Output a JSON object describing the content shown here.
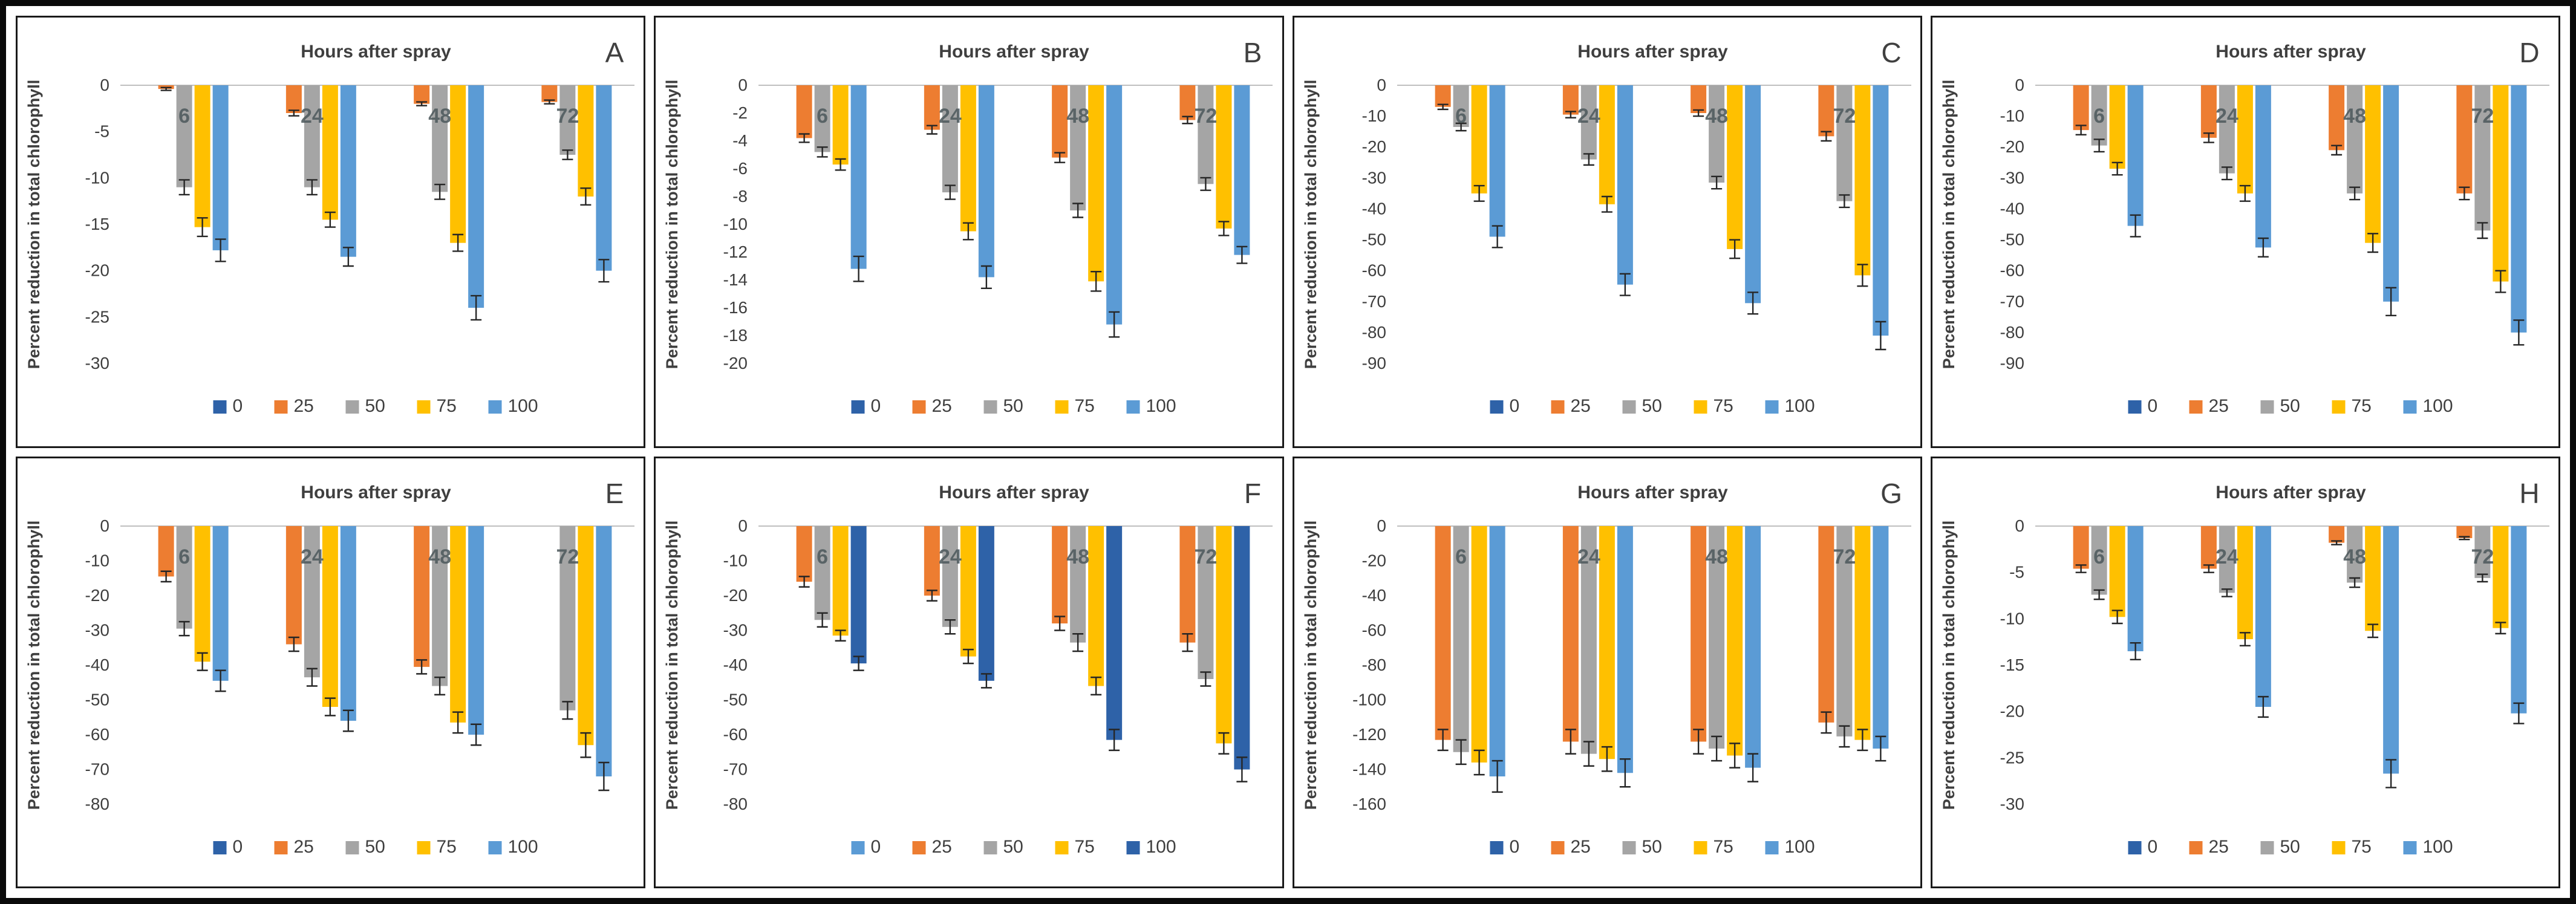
{
  "figure": {
    "title_label": "Hours after spray",
    "y_axis_label": "Percent reduction in total chlorophyll",
    "categories": [
      "6",
      "24",
      "48",
      "72"
    ],
    "legend_labels": [
      "0",
      "25",
      "50",
      "75",
      "100"
    ],
    "colors": {
      "dark_blue": "#2E62A8",
      "orange": "#ED7D31",
      "gray": "#A5A5A5",
      "gold": "#FFC000",
      "light_blue": "#5B9BD5",
      "axis_text": "#3F3F3F",
      "title_text": "#3F3F3F",
      "panel_letter": "#404040",
      "category_label": "#4F5B5E",
      "error_bar": "#262626",
      "zero_line": "#BFBFBF"
    }
  },
  "chart_data": [
    {
      "panel": "A",
      "type": "bar",
      "title": "Hours after spray",
      "xlabel": "",
      "ylabel": "Percent reduction in total chlorophyll",
      "categories": [
        "6",
        "24",
        "48",
        "72"
      ],
      "ylim": [
        0,
        -30
      ],
      "ytick_step": 5,
      "legend_position": "bottom",
      "series_colors": [
        "dark_blue",
        "orange",
        "gray",
        "gold",
        "light_blue"
      ],
      "series": [
        {
          "name": "0",
          "values": [
            0,
            0,
            0,
            0
          ],
          "errors": [
            0,
            0,
            0,
            0
          ]
        },
        {
          "name": "25",
          "values": [
            -0.4,
            -3,
            -2,
            -1.8
          ],
          "errors": [
            0.15,
            0.3,
            0.2,
            0.2
          ]
        },
        {
          "name": "50",
          "values": [
            -11,
            -11,
            -11.5,
            -7.5
          ],
          "errors": [
            0.8,
            0.8,
            0.8,
            0.5
          ]
        },
        {
          "name": "75",
          "values": [
            -15.3,
            -14.5,
            -17,
            -12
          ],
          "errors": [
            1.0,
            0.8,
            0.9,
            0.9
          ]
        },
        {
          "name": "100",
          "values": [
            -17.8,
            -18.5,
            -24,
            -20
          ],
          "errors": [
            1.2,
            1.0,
            1.3,
            1.2
          ]
        }
      ]
    },
    {
      "panel": "B",
      "type": "bar",
      "title": "Hours after spray",
      "xlabel": "",
      "ylabel": "Percent reduction in total chlorophyll",
      "categories": [
        "6",
        "24",
        "48",
        "72"
      ],
      "ylim": [
        0,
        -20
      ],
      "ytick_step": 2,
      "legend_position": "bottom",
      "series_colors": [
        "dark_blue",
        "orange",
        "gray",
        "gold",
        "light_blue"
      ],
      "series": [
        {
          "name": "0",
          "values": [
            0,
            0,
            0,
            0
          ],
          "errors": [
            0,
            0,
            0,
            0
          ]
        },
        {
          "name": "25",
          "values": [
            -3.8,
            -3.2,
            -5.2,
            -2.5
          ],
          "errors": [
            0.3,
            0.3,
            0.35,
            0.25
          ]
        },
        {
          "name": "50",
          "values": [
            -4.8,
            -7.7,
            -9.0,
            -7.1
          ],
          "errors": [
            0.35,
            0.5,
            0.5,
            0.45
          ]
        },
        {
          "name": "75",
          "values": [
            -5.7,
            -10.5,
            -14.1,
            -10.3
          ],
          "errors": [
            0.4,
            0.6,
            0.7,
            0.5
          ]
        },
        {
          "name": "100",
          "values": [
            -13.2,
            -13.8,
            -17.2,
            -12.2
          ],
          "errors": [
            0.9,
            0.8,
            0.9,
            0.6
          ]
        }
      ]
    },
    {
      "panel": "C",
      "type": "bar",
      "title": "Hours after spray",
      "xlabel": "",
      "ylabel": "Percent reduction in total chlorophyll",
      "categories": [
        "6",
        "24",
        "48",
        "72"
      ],
      "ylim": [
        0,
        -90
      ],
      "ytick_step": 10,
      "legend_position": "bottom",
      "series_colors": [
        "dark_blue",
        "orange",
        "gray",
        "gold",
        "light_blue"
      ],
      "series": [
        {
          "name": "0",
          "values": [
            0,
            0,
            0,
            0
          ],
          "errors": [
            0,
            0,
            0,
            0
          ]
        },
        {
          "name": "25",
          "values": [
            -7,
            -9.5,
            -9,
            -16.5
          ],
          "errors": [
            0.8,
            1.0,
            1.0,
            1.5
          ]
        },
        {
          "name": "50",
          "values": [
            -13.5,
            -24,
            -31.5,
            -37.5
          ],
          "errors": [
            1.2,
            1.8,
            2.0,
            2.0
          ]
        },
        {
          "name": "75",
          "values": [
            -35,
            -38.5,
            -53,
            -61.5
          ],
          "errors": [
            2.5,
            2.5,
            3.0,
            3.5
          ]
        },
        {
          "name": "100",
          "values": [
            -49,
            -64.5,
            -70.5,
            -81
          ],
          "errors": [
            3.5,
            3.5,
            3.5,
            4.5
          ]
        }
      ]
    },
    {
      "panel": "D",
      "type": "bar",
      "title": "Hours after spray",
      "xlabel": "",
      "ylabel": "Percent reduction in total chlorophyll",
      "categories": [
        "6",
        "24",
        "48",
        "72"
      ],
      "ylim": [
        0,
        -90
      ],
      "ytick_step": 10,
      "legend_position": "bottom",
      "series_colors": [
        "dark_blue",
        "orange",
        "gray",
        "gold",
        "light_blue"
      ],
      "series": [
        {
          "name": "0",
          "values": [
            0,
            0,
            0,
            0
          ],
          "errors": [
            0,
            0,
            0,
            0
          ]
        },
        {
          "name": "25",
          "values": [
            -14.5,
            -17,
            -21,
            -35
          ],
          "errors": [
            1.5,
            1.5,
            1.5,
            2.0
          ]
        },
        {
          "name": "50",
          "values": [
            -19.5,
            -28.5,
            -35,
            -47
          ],
          "errors": [
            2.0,
            2.0,
            2.0,
            2.5
          ]
        },
        {
          "name": "75",
          "values": [
            -27,
            -35,
            -51,
            -63.5
          ],
          "errors": [
            2.0,
            2.5,
            3.0,
            3.5
          ]
        },
        {
          "name": "100",
          "values": [
            -45.5,
            -52.5,
            -70,
            -80
          ],
          "errors": [
            3.5,
            3.0,
            4.5,
            4.0
          ]
        }
      ]
    },
    {
      "panel": "E",
      "type": "bar",
      "title": "Hours after spray",
      "xlabel": "",
      "ylabel": "Percent reduction in total chlorophyll",
      "categories": [
        "6",
        "24",
        "48",
        "72"
      ],
      "ylim": [
        0,
        -80
      ],
      "ytick_step": 10,
      "legend_position": "bottom",
      "series_colors": [
        "dark_blue",
        "orange",
        "gray",
        "gold",
        "light_blue"
      ],
      "series": [
        {
          "name": "0",
          "values": [
            0,
            0,
            0,
            0
          ],
          "errors": [
            0,
            0,
            0,
            0
          ]
        },
        {
          "name": "25",
          "values": [
            -14.5,
            -34,
            -40.5,
            0
          ],
          "errors": [
            1.5,
            2.0,
            2.0,
            0
          ]
        },
        {
          "name": "50",
          "values": [
            -29.5,
            -43.5,
            -46,
            -53
          ],
          "errors": [
            2.0,
            2.5,
            2.5,
            2.5
          ]
        },
        {
          "name": "75",
          "values": [
            -39,
            -52,
            -56.5,
            -63
          ],
          "errors": [
            2.5,
            2.5,
            3.0,
            3.5
          ]
        },
        {
          "name": "100",
          "values": [
            -44.5,
            -56,
            -60,
            -72
          ],
          "errors": [
            3.0,
            3.0,
            3.0,
            4.0
          ]
        }
      ]
    },
    {
      "panel": "F",
      "type": "bar",
      "title": "Hours after spray",
      "xlabel": "",
      "ylabel": "Percent reduction in total chlorophyll",
      "categories": [
        "6",
        "24",
        "48",
        "72"
      ],
      "ylim": [
        0,
        -80
      ],
      "ytick_step": 10,
      "legend_position": "bottom",
      "series_colors": [
        "light_blue",
        "orange",
        "gray",
        "gold",
        "dark_blue"
      ],
      "series": [
        {
          "name": "0",
          "values": [
            0,
            0,
            0,
            0
          ],
          "errors": [
            0,
            0,
            0,
            0
          ]
        },
        {
          "name": "25",
          "values": [
            -16,
            -20,
            -28,
            -33.5
          ],
          "errors": [
            1.5,
            1.5,
            2.0,
            2.5
          ]
        },
        {
          "name": "50",
          "values": [
            -27,
            -29,
            -33.5,
            -44
          ],
          "errors": [
            2.0,
            2.0,
            2.5,
            2.0
          ]
        },
        {
          "name": "75",
          "values": [
            -31.5,
            -37.5,
            -46,
            -62.5
          ],
          "errors": [
            1.5,
            2.0,
            2.5,
            3.0
          ]
        },
        {
          "name": "100",
          "values": [
            -39.5,
            -44.5,
            -61.5,
            -70
          ],
          "errors": [
            2.0,
            2.0,
            3.0,
            3.5
          ]
        }
      ]
    },
    {
      "panel": "G",
      "type": "bar",
      "title": "Hours after spray",
      "xlabel": "",
      "ylabel": "Percent reduction in total chlorophyll",
      "categories": [
        "6",
        "24",
        "48",
        "72"
      ],
      "ylim": [
        0,
        -160
      ],
      "ytick_step": 20,
      "legend_position": "bottom",
      "series_colors": [
        "dark_blue",
        "orange",
        "gray",
        "gold",
        "light_blue"
      ],
      "series": [
        {
          "name": "0",
          "values": [
            0,
            0,
            0,
            0
          ],
          "errors": [
            0,
            0,
            0,
            0
          ]
        },
        {
          "name": "25",
          "values": [
            -123,
            -124,
            -124,
            -113
          ],
          "errors": [
            6,
            7,
            7,
            6
          ]
        },
        {
          "name": "50",
          "values": [
            -130,
            -131,
            -128,
            -121
          ],
          "errors": [
            7,
            7,
            7,
            6
          ]
        },
        {
          "name": "75",
          "values": [
            -136,
            -134,
            -132,
            -123
          ],
          "errors": [
            7,
            7,
            7,
            6
          ]
        },
        {
          "name": "100",
          "values": [
            -144,
            -142,
            -139,
            -128
          ],
          "errors": [
            9,
            8,
            8,
            7
          ]
        }
      ]
    },
    {
      "panel": "H",
      "type": "bar",
      "title": "Hours after spray",
      "xlabel": "",
      "ylabel": "Percent reduction in total chlorophyll",
      "categories": [
        "6",
        "24",
        "48",
        "72"
      ],
      "ylim": [
        0,
        -30
      ],
      "ytick_step": 5,
      "legend_position": "bottom",
      "series_colors": [
        "dark_blue",
        "orange",
        "gray",
        "gold",
        "light_blue"
      ],
      "series": [
        {
          "name": "0",
          "values": [
            0,
            0,
            0,
            0
          ],
          "errors": [
            0,
            0,
            0,
            0
          ]
        },
        {
          "name": "25",
          "values": [
            -4.6,
            -4.6,
            -1.8,
            -1.3
          ],
          "errors": [
            0.4,
            0.4,
            0.2,
            0.15
          ]
        },
        {
          "name": "50",
          "values": [
            -7.4,
            -7.2,
            -6.1,
            -5.6
          ],
          "errors": [
            0.5,
            0.4,
            0.5,
            0.4
          ]
        },
        {
          "name": "75",
          "values": [
            -9.8,
            -12.2,
            -11.3,
            -11
          ],
          "errors": [
            0.7,
            0.7,
            0.7,
            0.6
          ]
        },
        {
          "name": "100",
          "values": [
            -13.5,
            -19.5,
            -26.7,
            -20.2
          ],
          "errors": [
            0.9,
            1.1,
            1.5,
            1.1
          ]
        }
      ]
    }
  ]
}
